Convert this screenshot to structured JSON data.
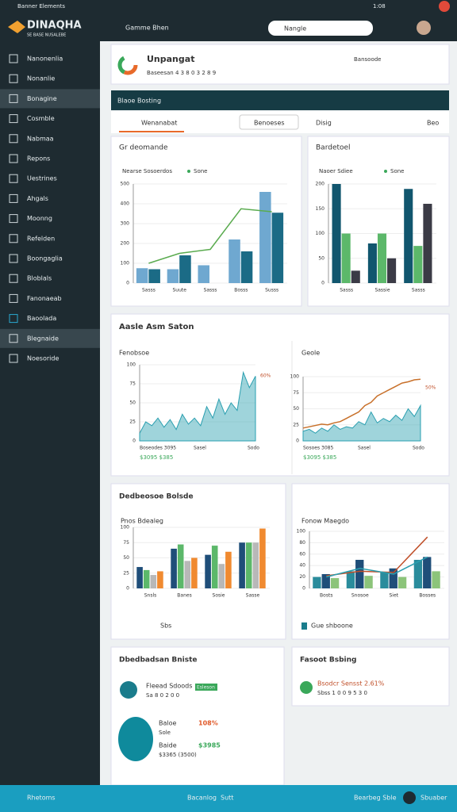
{
  "status_bar": {
    "left": "Banner Elements",
    "right": "1:08"
  },
  "header": {
    "logo": "DINAQHA",
    "tagline": "SE BASE NUSALEBE",
    "breadcrumb": "Gamme Bhen",
    "search": "Nangle"
  },
  "sidebar": [
    "Nanonenlia",
    "Nonanlie",
    "Bonagine",
    "Cosmble",
    "Nabmaa",
    "Repons",
    "Uestrines",
    "Ahgals",
    "Moonng",
    "Refelden",
    "Boongaglia",
    "Bloblals",
    "Fanonaeab",
    "Baoolada",
    "Blegnaide",
    "Noesoride"
  ],
  "summary": {
    "title": "Unpangat",
    "subtitle": "Baseesan 4 3 8 0 3 2 8 9",
    "button": "Bansoode"
  },
  "section_bar": {
    "title": "Blaoe Bosting"
  },
  "tabs": {
    "active": "Wenanabat",
    "search": "Benoeses",
    "filter": "Disig",
    "action": "Beo"
  },
  "panels": {
    "analysis": "Aasle Asm Saton",
    "comparison": "Dedbeosoe Bolsde",
    "footer_left": "Sbs",
    "footer_right": "Gue shboone",
    "detail": "Dbedbadsan Bniste",
    "finance": "Fasoot Bsbing"
  },
  "details": {
    "row1_title": "Fleead Sdoods",
    "row1_badge": "Esleson",
    "row1_sub": "Sa 8 0 2 0 0",
    "pct_label": "Baloe",
    "pct": "108%",
    "sub": "Sole",
    "amount_label": "Baide",
    "amount": "$3985",
    "amount_sub": "$3365 (3500)"
  },
  "finance": {
    "title": "Bsodcr Sensst 2.61%",
    "sub": "Sbss 1 0 0 9 5 3 0"
  },
  "bottom_bar": {
    "left": "Rhetoms",
    "center": "Bacanlog",
    "center2": "Sutt",
    "right": "Bearbeg Sble",
    "user": "Sbuaber"
  },
  "charts": [
    {
      "type": "bar",
      "title": "Gr deomande",
      "subtitle": "Nearse Sosoerdos",
      "legend": "Sone",
      "categories": [
        "Sasss",
        "Suute",
        "Sasss",
        "Bosss",
        "Susss"
      ],
      "series": [
        {
          "color": "#6fa8d0",
          "values": [
            75,
            70,
            90,
            220,
            460
          ]
        },
        {
          "color": "#1b6b86",
          "values": [
            70,
            140,
            0,
            160,
            355
          ]
        },
        {
          "color": "#5aab4f",
          "kind": "line",
          "values": [
            100,
            150,
            170,
            375,
            360
          ]
        }
      ],
      "ylim": [
        0,
        500
      ],
      "yticks": [
        0,
        100,
        200,
        300,
        400,
        500
      ]
    },
    {
      "type": "bar",
      "title": "Bardetoel",
      "subtitle": "Naoer Sdiee",
      "legend": "Sone",
      "categories": [
        "Sasss",
        "Sassie",
        "Sasss"
      ],
      "series": [
        {
          "color": "#11566e",
          "values": [
            200,
            80,
            190
          ]
        },
        {
          "color": "#5cb86a",
          "values": [
            100,
            100,
            75
          ]
        },
        {
          "color": "#3b3b46",
          "values": [
            25,
            50,
            160
          ]
        }
      ],
      "ylim": [
        0,
        200
      ],
      "yticks": [
        0,
        50,
        100,
        150,
        200
      ]
    },
    {
      "type": "area",
      "title": "Fenobsoe",
      "footer": [
        "Boseodes 3095",
        "Sasel",
        "Sodo"
      ],
      "total": "$3095 $385",
      "series": [
        {
          "color": "#2a9fb0",
          "kind": "area",
          "values": [
            10,
            25,
            20,
            30,
            18,
            28,
            15,
            35,
            22,
            30,
            20,
            45,
            30,
            55,
            35,
            50,
            40,
            90,
            70,
            85
          ]
        }
      ],
      "ylim": [
        0,
        100
      ],
      "yticks": [
        0,
        25,
        50,
        75,
        100
      ],
      "right_label": "60%"
    },
    {
      "type": "area",
      "title": "Geole",
      "footer": [
        "Sosoes 3085",
        "Sasel",
        "Sodo"
      ],
      "total": "$3095 $385",
      "series": [
        {
          "color": "#2a9fb0",
          "kind": "area",
          "values": [
            15,
            18,
            12,
            20,
            15,
            25,
            18,
            22,
            20,
            30,
            25,
            45,
            28,
            35,
            30,
            40,
            32,
            50,
            38,
            55
          ]
        },
        {
          "color": "#c8702a",
          "kind": "line",
          "values": [
            20,
            22,
            24,
            26,
            25,
            28,
            30,
            35,
            40,
            45,
            55,
            60,
            70,
            75,
            80,
            85,
            90,
            92,
            95,
            96
          ]
        }
      ],
      "ylim": [
        0,
        100
      ],
      "yticks": [
        0,
        25,
        50,
        75,
        100
      ],
      "right_label": "50%"
    },
    {
      "type": "bar",
      "title": "Pnos Bdealeg",
      "categories": [
        "Snsls",
        "Banes",
        "Sosie",
        "Sasse"
      ],
      "series": [
        {
          "color": "#1f4e79",
          "values": [
            35,
            65,
            55,
            75
          ]
        },
        {
          "color": "#5cb86a",
          "values": [
            30,
            72,
            70,
            75
          ]
        },
        {
          "color": "#b8b8b8",
          "values": [
            22,
            45,
            40,
            75
          ]
        },
        {
          "color": "#f08a30",
          "values": [
            28,
            50,
            60,
            98
          ]
        }
      ],
      "ylim": [
        0,
        100
      ],
      "yticks": [
        0,
        25,
        50,
        75,
        100
      ]
    },
    {
      "type": "bar",
      "title": "Fonow Maegdo",
      "categories": [
        "Bosts",
        "Snosoe",
        "Siet",
        "Bosses"
      ],
      "series": [
        {
          "color": "#2a8c9c",
          "values": [
            20,
            30,
            28,
            50
          ]
        },
        {
          "color": "#1f4e79",
          "values": [
            25,
            50,
            35,
            55
          ]
        },
        {
          "color": "#8cc47a",
          "values": [
            18,
            22,
            20,
            30
          ]
        },
        {
          "color": "#c0502a",
          "kind": "line",
          "values": [
            22,
            30,
            28,
            90
          ]
        },
        {
          "color": "#2a9fb0",
          "kind": "line",
          "values": [
            20,
            35,
            25,
            55
          ]
        }
      ],
      "ylim": [
        0,
        100
      ],
      "yticks": [
        0,
        20,
        40,
        60,
        80,
        100
      ]
    }
  ]
}
